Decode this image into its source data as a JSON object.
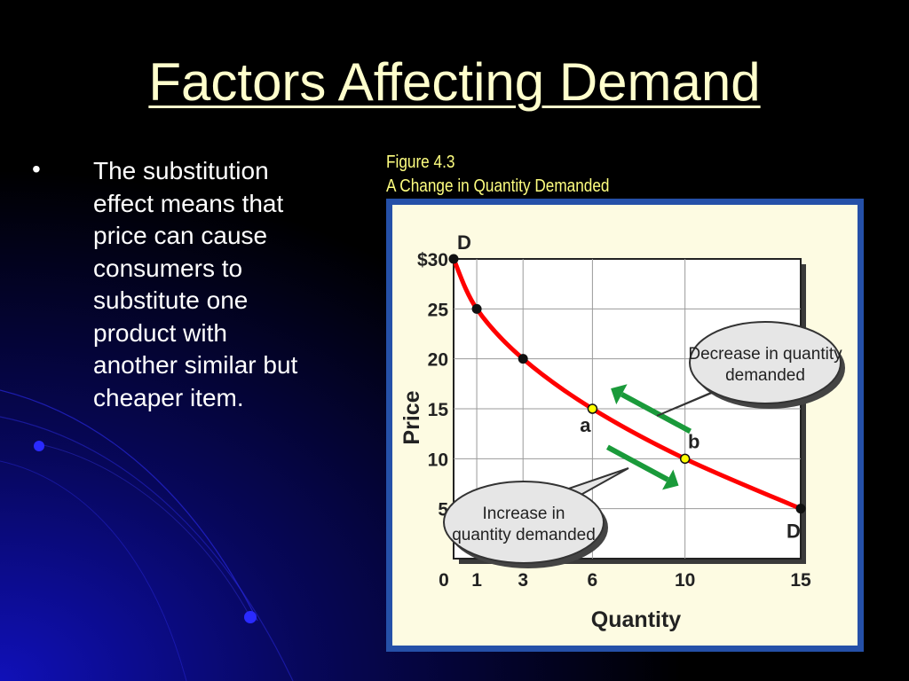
{
  "slide": {
    "title": "Factors Affecting Demand",
    "bullet_symbol": "•",
    "bullet_text": "The substitution effect means that price can cause consumers to substitute one product with another similar but cheaper item.",
    "figure_number": "Figure 4.3",
    "figure_title": "A Change in Quantity Demanded"
  },
  "colors": {
    "background": "#000000",
    "title": "#ffffcc",
    "caption": "#ffff80",
    "panel_border": "#2550a8",
    "panel_bg": "#fdfbe2",
    "curve": "#ff0000",
    "arrows": "#1a9a3a",
    "highlight_points": "#ffff00"
  },
  "chart_data": {
    "type": "line",
    "title": "",
    "xlabel": "Quantity",
    "ylabel": "Price",
    "x_ticks": [
      0,
      1,
      3,
      6,
      10,
      15
    ],
    "x_tick_labels": [
      "0",
      "1",
      "3",
      "6",
      "10",
      "15"
    ],
    "y_ticks": [
      5,
      10,
      15,
      20,
      25,
      30
    ],
    "y_tick_labels": [
      "5",
      "10",
      "15",
      "20",
      "25",
      "$30"
    ],
    "xlim": [
      0,
      15
    ],
    "ylim": [
      0,
      30
    ],
    "grid": true,
    "series": [
      {
        "name": "",
        "points": [
          {
            "x": 0,
            "y": 30
          },
          {
            "x": 1,
            "y": 25
          },
          {
            "x": 3,
            "y": 20
          },
          {
            "x": 6,
            "y": 15
          },
          {
            "x": 10,
            "y": 10
          },
          {
            "x": 15,
            "y": 5
          }
        ]
      }
    ],
    "curve_labels": [
      {
        "text": "D",
        "x": 0,
        "y": 30
      },
      {
        "text": "D",
        "x": 15,
        "y": 5
      }
    ],
    "highlighted_points": [
      {
        "label": "a",
        "x": 6,
        "y": 15
      },
      {
        "label": "b",
        "x": 10,
        "y": 10
      }
    ],
    "annotations": [
      {
        "text": [
          "Decrease in quantity",
          "demanded"
        ],
        "direction": "toward a"
      },
      {
        "text": [
          "Increase in",
          "quantity demanded"
        ],
        "direction": "toward b"
      }
    ]
  }
}
